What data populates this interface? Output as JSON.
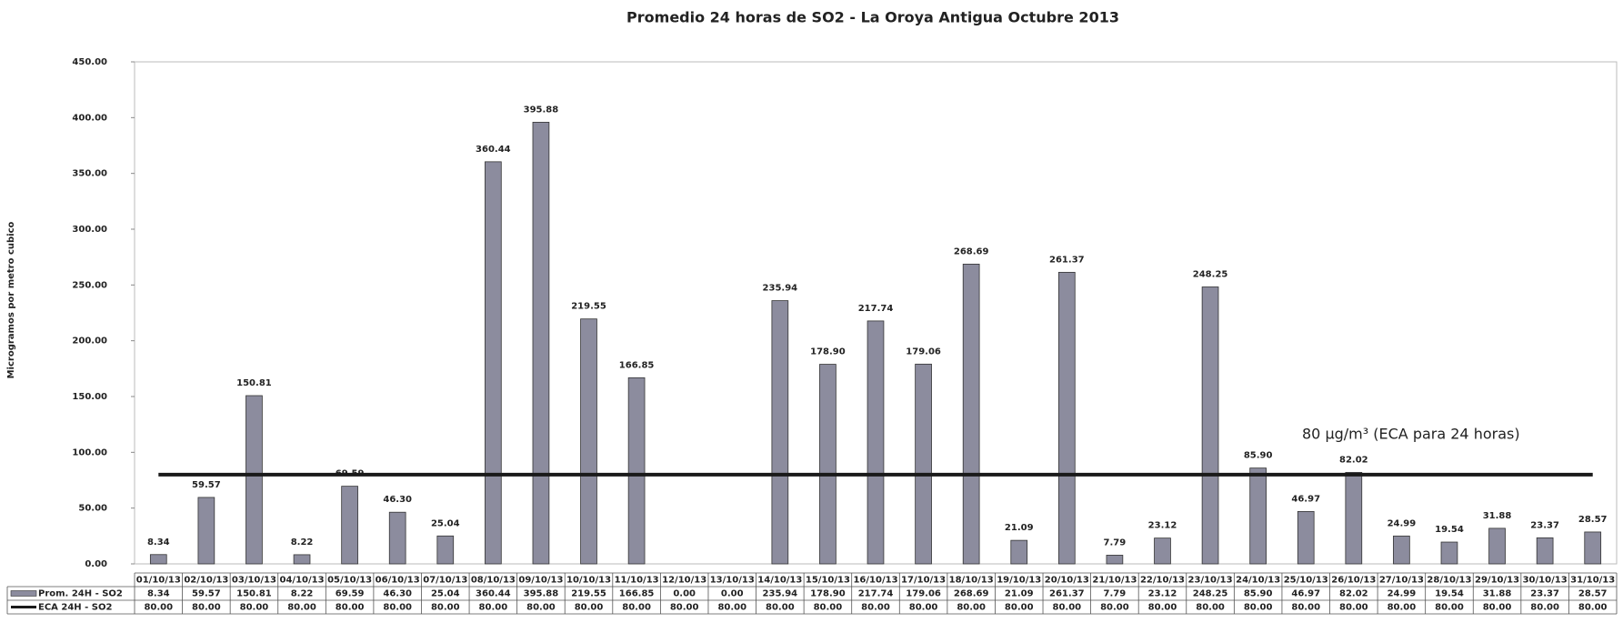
{
  "chart_data": {
    "type": "bar",
    "title": "Promedio 24 horas de SO2 - La Oroya Antigua  Octubre  2013",
    "y_label": "Microgramos por metro cubico",
    "annotation": "80 µg/m³  (ECA para 24 horas)",
    "categories": [
      "01/10/13",
      "02/10/13",
      "03/10/13",
      "04/10/13",
      "05/10/13",
      "06/10/13",
      "07/10/13",
      "08/10/13",
      "09/10/13",
      "10/10/13",
      "11/10/13",
      "12/10/13",
      "13/10/13",
      "14/10/13",
      "15/10/13",
      "16/10/13",
      "17/10/13",
      "18/10/13",
      "19/10/13",
      "20/10/13",
      "21/10/13",
      "22/10/13",
      "23/10/13",
      "24/10/13",
      "25/10/13",
      "26/10/13",
      "27/10/13",
      "28/10/13",
      "29/10/13",
      "30/10/13",
      "31/10/13"
    ],
    "series": [
      {
        "name": "Prom. 24H - SO2",
        "type": "bar",
        "color": "#8c8c9e",
        "values": [
          8.34,
          59.57,
          150.81,
          8.22,
          69.59,
          46.3,
          25.04,
          360.44,
          395.88,
          219.55,
          166.85,
          0,
          0,
          235.94,
          178.9,
          217.74,
          179.06,
          268.69,
          21.09,
          261.37,
          7.79,
          23.12,
          248.25,
          85.9,
          46.97,
          82.02,
          24.99,
          19.54,
          31.88,
          23.37,
          28.57
        ],
        "value_labels": [
          "8.34",
          "59.57",
          "150.81",
          "8.22",
          "69.59",
          "46.30",
          "25.04",
          "360.44",
          "395.88",
          "219.55",
          "166.85",
          "0.00",
          "0.00",
          "235.94",
          "178.90",
          "217.74",
          "179.06",
          "268.69",
          "21.09",
          "261.37",
          "7.79",
          "23.12",
          "248.25",
          "85.90",
          "46.97",
          "82.02",
          "24.99",
          "19.54",
          "31.88",
          "23.37",
          "28.57"
        ]
      },
      {
        "name": "ECA 24H - SO2",
        "type": "line",
        "color": "#1a1a1a",
        "values": [
          80,
          80,
          80,
          80,
          80,
          80,
          80,
          80,
          80,
          80,
          80,
          80,
          80,
          80,
          80,
          80,
          80,
          80,
          80,
          80,
          80,
          80,
          80,
          80,
          80,
          80,
          80,
          80,
          80,
          80,
          80
        ],
        "value_labels": [
          "80.00",
          "80.00",
          "80.00",
          "80.00",
          "80.00",
          "80.00",
          "80.00",
          "80.00",
          "80.00",
          "80.00",
          "80.00",
          "80.00",
          "80.00",
          "80.00",
          "80.00",
          "80.00",
          "80.00",
          "80.00",
          "80.00",
          "80.00",
          "80.00",
          "80.00",
          "80.00",
          "80.00",
          "80.00",
          "80.00",
          "80.00",
          "80.00",
          "80.00",
          "80.00",
          "80.00"
        ]
      }
    ],
    "ylim": [
      0,
      450
    ],
    "yticks": [
      {
        "value": 0,
        "label": "0.00"
      },
      {
        "value": 50,
        "label": "50.00"
      },
      {
        "value": 100,
        "label": "100.00"
      },
      {
        "value": 150,
        "label": "150.00"
      },
      {
        "value": 200,
        "label": "200.00"
      },
      {
        "value": 250,
        "label": "250.00"
      },
      {
        "value": 300,
        "label": "300.00"
      },
      {
        "value": 350,
        "label": "350.00"
      },
      {
        "value": 400,
        "label": "400.00"
      },
      {
        "value": 450,
        "label": "450.00"
      }
    ],
    "grid": false,
    "data_table": true
  }
}
